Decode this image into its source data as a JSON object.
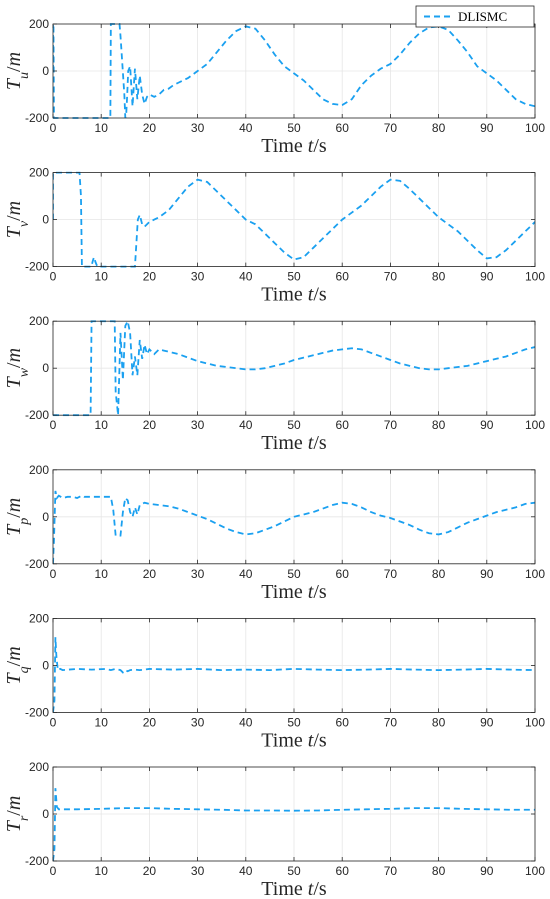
{
  "colors": {
    "series": "#1aa0f0",
    "grid": "#e6e6e6",
    "axis": "#262626",
    "background": "#ffffff"
  },
  "legend": {
    "label": "DLISMC",
    "placement": "top-right"
  },
  "chart_data": [
    {
      "type": "line",
      "ylabel": {
        "base": "T",
        "sub": "u",
        "unit": "/m"
      },
      "xlabel": {
        "prefix": "Time ",
        "var": "t",
        "unit": "/s"
      },
      "xlim": [
        0,
        100
      ],
      "ylim": [
        -200,
        200
      ],
      "xticks": [
        "0",
        "10",
        "20",
        "30",
        "40",
        "50",
        "60",
        "70",
        "80",
        "90",
        "100"
      ],
      "yticks": [
        "200",
        "0",
        "-200"
      ],
      "grid": true,
      "series": [
        {
          "name": "DLISMC",
          "x": [
            0,
            0,
            0.1,
            0.2,
            11.9,
            12,
            13.8,
            14,
            14.8,
            15,
            15.2,
            15.4,
            15.6,
            16,
            16.5,
            17,
            17.5,
            18,
            18.5,
            19,
            19.5,
            20,
            21,
            22,
            23,
            24,
            25,
            26,
            27,
            28,
            30,
            32,
            34,
            36,
            38,
            40,
            42,
            44,
            46,
            48,
            50,
            52,
            54,
            56,
            58,
            60,
            62,
            64,
            66,
            68,
            70,
            72,
            74,
            76,
            78,
            80,
            82,
            84,
            86,
            88,
            90,
            92,
            94,
            96,
            98,
            100
          ],
          "y": [
            0,
            200,
            200,
            -200,
            -200,
            200,
            200,
            150,
            -100,
            -200,
            -180,
            -100,
            0,
            20,
            -150,
            10,
            -120,
            -20,
            -100,
            -140,
            -110,
            -100,
            -110,
            -100,
            -80,
            -75,
            -60,
            -50,
            -40,
            -30,
            0,
            30,
            80,
            130,
            170,
            190,
            180,
            130,
            70,
            20,
            -10,
            -40,
            -80,
            -120,
            -140,
            -145,
            -120,
            -60,
            -20,
            10,
            30,
            70,
            120,
            160,
            185,
            190,
            175,
            130,
            80,
            20,
            -10,
            -40,
            -80,
            -120,
            -140,
            -150
          ]
        }
      ]
    },
    {
      "type": "line",
      "ylabel": {
        "base": "T",
        "sub": "v",
        "unit": "/m"
      },
      "xlabel": {
        "prefix": "Time ",
        "var": "t",
        "unit": "/s"
      },
      "xlim": [
        0,
        100
      ],
      "ylim": [
        -200,
        200
      ],
      "xticks": [
        "0",
        "10",
        "20",
        "30",
        "40",
        "50",
        "60",
        "70",
        "80",
        "90",
        "100"
      ],
      "yticks": [
        "200",
        "0",
        "-200"
      ],
      "grid": true,
      "series": [
        {
          "name": "DLISMC",
          "x": [
            0,
            0,
            0.1,
            0.5,
            5.5,
            5.8,
            6,
            8,
            8.2,
            8.5,
            8.8,
            9.2,
            9.5,
            17,
            17.3,
            17.6,
            18,
            18.5,
            19,
            20,
            21,
            22,
            24,
            26,
            28,
            30,
            32,
            34,
            36,
            38,
            40,
            42,
            44,
            46,
            48,
            50,
            52,
            54,
            56,
            58,
            60,
            62,
            64,
            66,
            68,
            70,
            72,
            74,
            76,
            78,
            80,
            82,
            84,
            86,
            88,
            90,
            92,
            94,
            96,
            98,
            100
          ],
          "y": [
            0,
            200,
            200,
            200,
            200,
            100,
            -200,
            -200,
            -180,
            -160,
            -180,
            -200,
            -200,
            -200,
            -100,
            0,
            20,
            -20,
            -30,
            -10,
            0,
            10,
            40,
            90,
            140,
            170,
            160,
            120,
            80,
            40,
            0,
            -20,
            -60,
            -100,
            -140,
            -170,
            -160,
            -120,
            -80,
            -40,
            0,
            30,
            60,
            100,
            140,
            170,
            165,
            130,
            90,
            50,
            10,
            -20,
            -50,
            -90,
            -130,
            -165,
            -160,
            -130,
            -90,
            -50,
            -10
          ]
        }
      ]
    },
    {
      "type": "line",
      "ylabel": {
        "base": "T",
        "sub": "w",
        "unit": "/m"
      },
      "xlabel": {
        "prefix": "Time ",
        "var": "t",
        "unit": "/s"
      },
      "xlim": [
        0,
        100
      ],
      "ylim": [
        -200,
        200
      ],
      "xticks": [
        "0",
        "10",
        "20",
        "30",
        "40",
        "50",
        "60",
        "70",
        "80",
        "90",
        "100"
      ],
      "yticks": [
        "200",
        "0",
        "-200"
      ],
      "grid": true,
      "series": [
        {
          "name": "DLISMC",
          "x": [
            0,
            7.8,
            8,
            12.8,
            13,
            13.5,
            14,
            14.5,
            15,
            15.5,
            16,
            16.5,
            17,
            17.5,
            18,
            18.5,
            19,
            19.5,
            20,
            21,
            22,
            23,
            24,
            26,
            28,
            30,
            32,
            34,
            36,
            38,
            40,
            42,
            44,
            46,
            48,
            50,
            52,
            54,
            56,
            58,
            60,
            62,
            64,
            66,
            68,
            70,
            72,
            74,
            76,
            78,
            80,
            82,
            84,
            86,
            88,
            90,
            92,
            94,
            96,
            98,
            100
          ],
          "y": [
            -200,
            -200,
            200,
            200,
            -100,
            -200,
            150,
            -50,
            180,
            200,
            150,
            -30,
            50,
            -30,
            120,
            40,
            100,
            60,
            80,
            60,
            80,
            75,
            70,
            60,
            45,
            30,
            20,
            10,
            5,
            0,
            -5,
            -5,
            0,
            10,
            20,
            35,
            45,
            55,
            65,
            75,
            80,
            85,
            80,
            65,
            50,
            35,
            20,
            10,
            0,
            -5,
            -5,
            0,
            5,
            10,
            20,
            30,
            40,
            50,
            65,
            80,
            90
          ]
        }
      ]
    },
    {
      "type": "line",
      "ylabel": {
        "base": "T",
        "sub": "p",
        "unit": "/m"
      },
      "xlabel": {
        "prefix": "Time ",
        "var": "t",
        "unit": "/s"
      },
      "xlim": [
        0,
        100
      ],
      "ylim": [
        -200,
        200
      ],
      "xticks": [
        "0",
        "10",
        "20",
        "30",
        "40",
        "50",
        "60",
        "70",
        "80",
        "90",
        "100"
      ],
      "yticks": [
        "200",
        "0",
        "-200"
      ],
      "grid": true,
      "series": [
        {
          "name": "DLISMC",
          "x": [
            0,
            0.2,
            0.5,
            0.8,
            1.2,
            1.6,
            2,
            3,
            4,
            5,
            5.5,
            6,
            6.5,
            7,
            8,
            9,
            10,
            11,
            12,
            12.5,
            13,
            14,
            14.5,
            15,
            15.5,
            16,
            16.5,
            17,
            17.5,
            18,
            19,
            20,
            22,
            24,
            26,
            28,
            30,
            32,
            34,
            36,
            38,
            40,
            42,
            44,
            46,
            48,
            50,
            52,
            54,
            56,
            58,
            60,
            62,
            64,
            66,
            68,
            70,
            72,
            74,
            76,
            78,
            80,
            82,
            84,
            86,
            88,
            90,
            92,
            94,
            96,
            98,
            100
          ],
          "y": [
            -200,
            -100,
            110,
            80,
            90,
            85,
            80,
            85,
            85,
            80,
            85,
            90,
            85,
            85,
            85,
            85,
            85,
            85,
            85,
            30,
            -80,
            -80,
            20,
            80,
            70,
            20,
            0,
            40,
            10,
            50,
            60,
            55,
            50,
            45,
            35,
            20,
            5,
            -10,
            -30,
            -50,
            -65,
            -75,
            -70,
            -55,
            -40,
            -20,
            0,
            10,
            20,
            35,
            50,
            60,
            55,
            40,
            20,
            5,
            -5,
            -20,
            -35,
            -55,
            -70,
            -75,
            -65,
            -45,
            -25,
            -10,
            5,
            20,
            30,
            40,
            55,
            60
          ]
        }
      ]
    },
    {
      "type": "line",
      "ylabel": {
        "base": "T",
        "sub": "q",
        "unit": "/m"
      },
      "xlabel": {
        "prefix": "Time ",
        "var": "t",
        "unit": "/s"
      },
      "xlim": [
        0,
        100
      ],
      "ylim": [
        -200,
        200
      ],
      "xticks": [
        "0",
        "10",
        "20",
        "30",
        "40",
        "50",
        "60",
        "70",
        "80",
        "90",
        "100"
      ],
      "yticks": [
        "200",
        "0",
        "-200"
      ],
      "grid": true,
      "series": [
        {
          "name": "DLISMC",
          "x": [
            0,
            0.3,
            0.5,
            0.7,
            1,
            1.5,
            2,
            5,
            8,
            11,
            12,
            13,
            14,
            14.5,
            15,
            15.5,
            16,
            17,
            18,
            20,
            25,
            30,
            35,
            40,
            45,
            50,
            55,
            60,
            65,
            70,
            75,
            80,
            85,
            90,
            95,
            100
          ],
          "y": [
            -200,
            -150,
            120,
            40,
            -20,
            -15,
            -20,
            -15,
            -18,
            -15,
            -20,
            -15,
            -20,
            -30,
            -20,
            -25,
            -20,
            -18,
            -20,
            -15,
            -18,
            -15,
            -20,
            -18,
            -20,
            -15,
            -18,
            -20,
            -18,
            -15,
            -18,
            -20,
            -18,
            -15,
            -18,
            -20
          ]
        }
      ]
    },
    {
      "type": "line",
      "ylabel": {
        "base": "T",
        "sub": "r",
        "unit": "/m"
      },
      "xlabel": {
        "prefix": "Time ",
        "var": "t",
        "unit": "/s"
      },
      "xlim": [
        0,
        100
      ],
      "ylim": [
        -200,
        200
      ],
      "xticks": [
        "0",
        "10",
        "20",
        "30",
        "40",
        "50",
        "60",
        "70",
        "80",
        "90",
        "100"
      ],
      "yticks": [
        "200",
        "0",
        "-200"
      ],
      "grid": true,
      "series": [
        {
          "name": "DLISMC",
          "x": [
            0,
            0.3,
            0.5,
            0.8,
            1.2,
            2,
            5,
            10,
            15,
            20,
            25,
            30,
            35,
            40,
            45,
            50,
            55,
            60,
            65,
            70,
            75,
            80,
            85,
            90,
            95,
            100
          ],
          "y": [
            -200,
            -150,
            110,
            30,
            20,
            20,
            20,
            22,
            25,
            25,
            22,
            20,
            18,
            15,
            15,
            14,
            15,
            18,
            20,
            22,
            25,
            25,
            22,
            20,
            18,
            18
          ]
        }
      ]
    }
  ]
}
